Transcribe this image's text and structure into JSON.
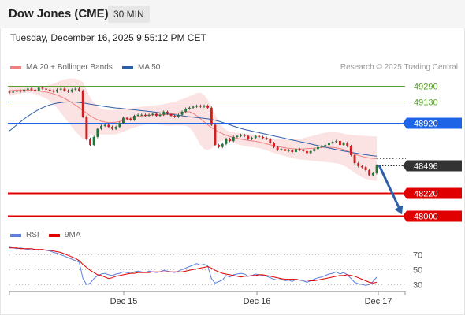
{
  "header": {
    "title": "Dow Jones (CME)",
    "timeframe": "30 MIN"
  },
  "timestamp": "Tuesday, December 16, 2025 9:55:12 PM CET",
  "credit": "Research © 2025 Trading Central",
  "legend": {
    "ma20": {
      "label": "MA 20 + Bollinger Bands",
      "color": "#f08080"
    },
    "ma50": {
      "label": "MA 50",
      "color": "#2d5fa6"
    },
    "rsi": {
      "label": "RSI",
      "color": "#5b7fdb"
    },
    "ma9": {
      "label": "9MA",
      "color": "#e00000"
    }
  },
  "chart_data": [
    {
      "type": "line",
      "panel": "price",
      "ylim": [
        47950,
        49350
      ],
      "x_labels": [
        "Dec 15",
        "Dec 16",
        "Dec 17"
      ],
      "last_price": {
        "value": 48496,
        "label": "48496",
        "color": "#333333"
      },
      "levels": [
        {
          "value": 49290,
          "label": "49290",
          "role": "resistance",
          "color": "#5aa02c"
        },
        {
          "value": 49130,
          "label": "49130",
          "role": "resistance",
          "color": "#5aa02c"
        },
        {
          "value": 48920,
          "label": "48920",
          "role": "pivot",
          "color": "#1e64e6"
        },
        {
          "value": 48220,
          "label": "48220",
          "role": "support",
          "color": "#e00000"
        },
        {
          "value": 48000,
          "label": "48000",
          "role": "support",
          "color": "#e00000"
        }
      ],
      "forecast_arrow": {
        "from": 48500,
        "to": 48010,
        "color": "#2d5fa6"
      },
      "close_series": [
        49220,
        49230,
        49240,
        49230,
        49250,
        49260,
        49250,
        49240,
        49270,
        49260,
        49250,
        49240,
        49230,
        49250,
        49260,
        49240,
        49230,
        49250,
        49260,
        49240,
        48980,
        48760,
        48700,
        48780,
        48860,
        48890,
        48900,
        48880,
        48860,
        48880,
        48920,
        48970,
        48960,
        48950,
        48990,
        49000,
        49000,
        48990,
        49000,
        49010,
        48990,
        49000,
        49030,
        49010,
        48990,
        48980,
        49000,
        49030,
        49060,
        49070,
        49080,
        49090,
        49080,
        49090,
        49070,
        48900,
        48700,
        48680,
        48710,
        48760,
        48740,
        48780,
        48790,
        48800,
        48790,
        48760,
        48770,
        48790,
        48780,
        48770,
        48760,
        48720,
        48680,
        48650,
        48660,
        48640,
        48650,
        48630,
        48660,
        48650,
        48640,
        48620,
        48640,
        48660,
        48680,
        48690,
        48700,
        48720,
        48730,
        48740,
        48700,
        48720,
        48690,
        48600,
        48520,
        48490,
        48480,
        48450,
        48400,
        48420,
        48496
      ],
      "ma20": [
        49240,
        49243,
        49245,
        49246,
        49246,
        49245,
        49243,
        49240,
        49236,
        49232,
        49226,
        49218,
        49208,
        49196,
        49180,
        49162,
        49142,
        49120,
        49096,
        49070,
        49042,
        49015,
        48990,
        48968,
        48950,
        48936,
        48928,
        48923,
        48923,
        48927,
        48934,
        48943,
        48953,
        48963,
        48972,
        48980,
        48987,
        48992,
        48996,
        48998,
        49000,
        49000,
        49000,
        49002,
        49006,
        49012,
        49018,
        49024,
        49030,
        49030,
        49014,
        48990,
        48960,
        48930,
        48900,
        48872,
        48850,
        48830,
        48812,
        48797,
        48784,
        48774,
        48765,
        48758,
        48752,
        48746,
        48741,
        48736,
        48729,
        48721,
        48712,
        48702,
        48693,
        48685,
        48678,
        48672,
        48667,
        48663,
        48660,
        48660,
        48661,
        48663,
        48666,
        48669,
        48672,
        48675,
        48677,
        48677,
        48676,
        48672,
        48665,
        48654,
        48640,
        48625,
        48610,
        48597,
        48586,
        48577,
        48571,
        48567,
        48565
      ],
      "bb_upper": [
        49290,
        49288,
        49285,
        49280,
        49275,
        49272,
        49272,
        49275,
        49280,
        49285,
        49290,
        49298,
        49310,
        49325,
        49340,
        49352,
        49360,
        49362,
        49358,
        49345,
        49325,
        49250,
        49170,
        49120,
        49080,
        49060,
        49050,
        49045,
        49045,
        49048,
        49050,
        49055,
        49060,
        49065,
        49070,
        49075,
        49080,
        49083,
        49086,
        49090,
        49095,
        49100,
        49106,
        49113,
        49120,
        49130,
        49142,
        49155,
        49170,
        49185,
        49200,
        49215,
        49220,
        49200,
        49150,
        49080,
        49000,
        48930,
        48880,
        48848,
        48832,
        48826,
        48822,
        48818,
        48813,
        48808,
        48803,
        48797,
        48790,
        48783,
        48776,
        48770,
        48765,
        48760,
        48757,
        48755,
        48754,
        48755,
        48758,
        48762,
        48768,
        48776,
        48785,
        48795,
        48805,
        48815,
        48822,
        48826,
        48828,
        48826,
        48820,
        48812,
        48805,
        48800,
        48797,
        48794,
        48792,
        48790,
        48788,
        48786,
        48785
      ],
      "bb_lower": [
        49190,
        49198,
        49205,
        49212,
        49217,
        49218,
        49214,
        49205,
        49192,
        49179,
        49162,
        49138,
        49106,
        49067,
        49020,
        48972,
        48924,
        48878,
        48834,
        48795,
        48759,
        48770,
        48790,
        48800,
        48805,
        48806,
        48806,
        48806,
        48806,
        48806,
        48818,
        48831,
        48846,
        48861,
        48874,
        48885,
        48894,
        48901,
        48906,
        48906,
        48905,
        48900,
        48894,
        48891,
        48892,
        48894,
        48894,
        48893,
        48890,
        48875,
        48828,
        48765,
        48700,
        48660,
        48650,
        48664,
        48700,
        48730,
        48744,
        48746,
        48736,
        48722,
        48708,
        48698,
        48691,
        48684,
        48679,
        48675,
        48668,
        48659,
        48648,
        48634,
        48621,
        48610,
        48599,
        48589,
        48580,
        48571,
        48562,
        48558,
        48554,
        48550,
        48547,
        48543,
        48539,
        48535,
        48532,
        48528,
        48524,
        48518,
        48510,
        48496,
        48475,
        48450,
        48423,
        48400,
        48380,
        48364,
        48354,
        48348,
        48345
      ],
      "ma50": [
        48840,
        48870,
        48900,
        48930,
        48958,
        48985,
        49010,
        49032,
        49052,
        49070,
        49085,
        49098,
        49108,
        49116,
        49122,
        49126,
        49128,
        49128,
        49126,
        49122,
        49117,
        49112,
        49106,
        49100,
        49094,
        49088,
        49082,
        49077,
        49072,
        49068,
        49065,
        49061,
        49057,
        49053,
        49049,
        49045,
        49041,
        49037,
        49033,
        49029,
        49025,
        49020,
        49015,
        49010,
        49005,
        49000,
        48995,
        48990,
        48985,
        48980,
        48976,
        48972,
        48968,
        48964,
        48960,
        48954,
        48946,
        48936,
        48924,
        48912,
        48900,
        48888,
        48876,
        48864,
        48854,
        48846,
        48838,
        48830,
        48822,
        48814,
        48806,
        48798,
        48790,
        48782,
        48774,
        48766,
        48758,
        48750,
        48742,
        48734,
        48726,
        48718,
        48710,
        48702,
        48694,
        48686,
        48678,
        48670,
        48662,
        48655,
        48648,
        48641,
        48634,
        48627,
        48621,
        48615,
        48609,
        48603,
        48598,
        48594,
        48590
      ]
    },
    {
      "type": "line",
      "panel": "rsi",
      "ylim": [
        25,
        82
      ],
      "y_ticks": [
        70,
        50,
        30
      ],
      "series": [
        {
          "name": "RSI",
          "values": [
            80,
            79,
            78,
            79,
            78,
            77,
            78,
            77,
            76,
            77,
            76,
            75,
            73,
            72,
            70,
            68,
            66,
            64,
            62,
            60,
            38,
            30,
            32,
            38,
            42,
            44,
            45,
            43,
            42,
            44,
            45,
            47,
            46,
            45,
            47,
            48,
            47,
            46,
            48,
            47,
            46,
            47,
            49,
            48,
            47,
            46,
            48,
            50,
            52,
            54,
            56,
            58,
            56,
            57,
            55,
            38,
            32,
            34,
            36,
            42,
            40,
            43,
            44,
            45,
            44,
            41,
            42,
            44,
            43,
            42,
            41,
            39,
            37,
            36,
            37,
            35,
            36,
            34,
            37,
            36,
            35,
            33,
            35,
            37,
            39,
            40,
            42,
            44,
            45,
            47,
            44,
            46,
            43,
            38,
            33,
            31,
            30,
            29,
            30,
            34,
            40
          ]
        },
        {
          "name": "9MA",
          "values": [
            79,
            79,
            79,
            78,
            78,
            78,
            78,
            77,
            77,
            77,
            76,
            76,
            75,
            74,
            73,
            71,
            69,
            67,
            65,
            62,
            57,
            53,
            49,
            46,
            43,
            42,
            40,
            38,
            39,
            41,
            42,
            43,
            44,
            45,
            45,
            46,
            46,
            46,
            46,
            47,
            47,
            47,
            47,
            47,
            47,
            47,
            47,
            47,
            48,
            49,
            50,
            51,
            52,
            53,
            54,
            52,
            49,
            47,
            45,
            44,
            43,
            42,
            41,
            40,
            41,
            41,
            42,
            42,
            43,
            43,
            42,
            41,
            40,
            39,
            38,
            37,
            37,
            37,
            37,
            36,
            36,
            36,
            35,
            35,
            36,
            37,
            38,
            39,
            40,
            41,
            42,
            42,
            43,
            42,
            41,
            39,
            37,
            35,
            33,
            32,
            33
          ]
        }
      ]
    }
  ]
}
